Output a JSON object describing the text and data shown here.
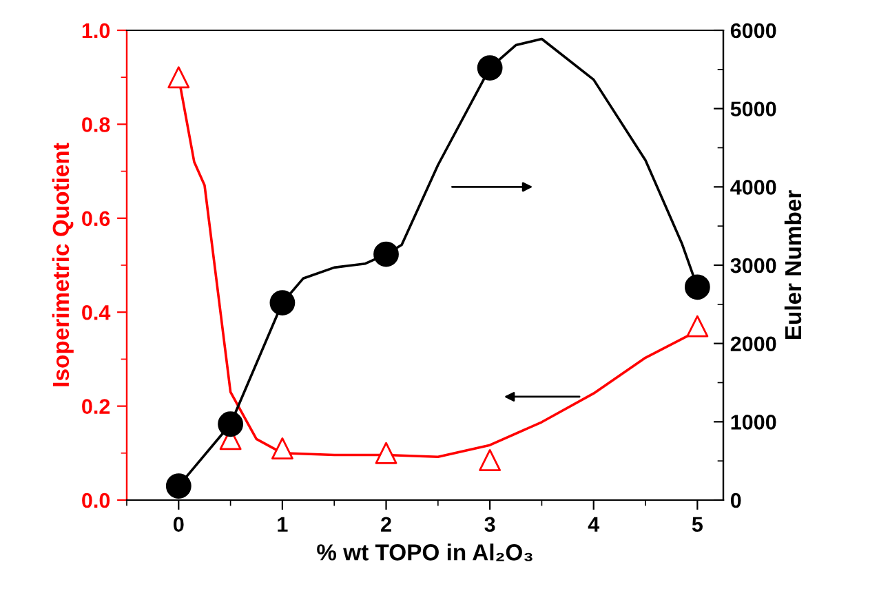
{
  "chart_data": {
    "type": "scatter",
    "xlabel": "% wt TOPO in Al₂O₃",
    "ylabel": "Isoperimetric Quotient",
    "y2label": "Euler Number",
    "xlim": [
      -0.5,
      5.25
    ],
    "xticks": [
      0,
      1,
      2,
      3,
      4,
      5
    ],
    "ylim": [
      0,
      1.0
    ],
    "yticks": [
      {
        "value": 0,
        "label": "0.0"
      },
      0.2,
      0.4,
      0.6,
      0.8,
      {
        "value": 1,
        "label": "1.0"
      }
    ],
    "y2lim": [
      0,
      6000
    ],
    "y2ticks": [
      0,
      1000,
      2000,
      3000,
      4000,
      5000,
      6000
    ],
    "grid": false,
    "legend": false,
    "series": [
      {
        "type": "line",
        "color": "#ff0000",
        "marker": "none",
        "x": [
          0,
          0.15,
          0.25,
          0.5,
          0.75,
          1,
          1.5,
          2,
          2.5,
          3,
          3.5,
          4,
          4.5,
          5
        ],
        "values": [
          0.9,
          0.72,
          0.67,
          0.23,
          0.13,
          0.1,
          0.096,
          0.096,
          0.092,
          0.117,
          0.166,
          0.227,
          0.303,
          0.36
        ]
      },
      {
        "type": "line",
        "color": "#000000",
        "marker": "none",
        "axis": "y2",
        "x": [
          0,
          0.5,
          1,
          1.2,
          1.5,
          1.8,
          2,
          2.15,
          2.5,
          3,
          3.25,
          3.5,
          4,
          4.5,
          4.85,
          5
        ],
        "values": [
          180,
          970,
          2520,
          2830,
          2970,
          3020,
          3140,
          3260,
          4280,
          5520,
          5810,
          5890,
          5370,
          4340,
          3280,
          2720
        ]
      },
      {
        "color": "#ff0000",
        "marker": "triangle",
        "x": [
          0,
          0.5,
          1,
          2,
          3,
          5
        ],
        "values": [
          0.9,
          0.13,
          0.11,
          0.1,
          0.085,
          0.37
        ]
      },
      {
        "color": "#000000",
        "marker": "circle",
        "axis": "y2",
        "x": [
          0,
          0.5,
          1,
          2,
          3,
          5
        ],
        "values": [
          180,
          970,
          2520,
          3140,
          5520,
          2720
        ]
      }
    ]
  }
}
